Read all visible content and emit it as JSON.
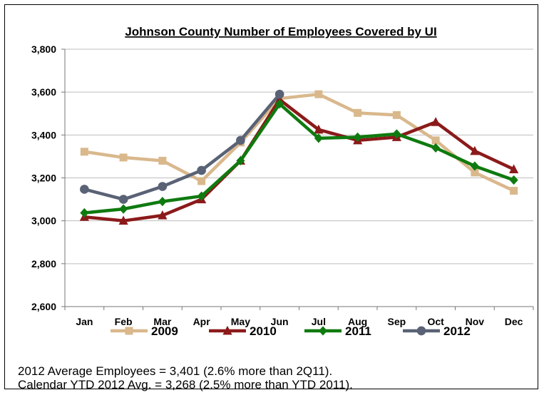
{
  "chart_data": {
    "type": "line",
    "title": "Johnson County Number of Employees Covered by UI",
    "xlabel": "",
    "ylabel": "",
    "categories": [
      "Jan",
      "Feb",
      "Mar",
      "Apr",
      "May",
      "Jun",
      "Jul",
      "Aug",
      "Sep",
      "Oct",
      "Nov",
      "Dec"
    ],
    "ylim": [
      2600,
      3800
    ],
    "yticks": [
      2600,
      2800,
      3000,
      3200,
      3400,
      3600,
      3800
    ],
    "ytick_labels": [
      "2,600",
      "2,800",
      "3,000",
      "3,200",
      "3,400",
      "3,600",
      "3,800"
    ],
    "grid": true,
    "legend_position": "bottom",
    "series": [
      {
        "name": "2009",
        "color": "#D9B88C",
        "marker": "square",
        "values": [
          3322,
          3295,
          3280,
          3185,
          3365,
          3570,
          3590,
          3503,
          3493,
          3375,
          3225,
          3140
        ]
      },
      {
        "name": "2010",
        "color": "#8B1A1A",
        "marker": "triangle",
        "values": [
          3018,
          3000,
          3025,
          3100,
          3280,
          3565,
          3425,
          3375,
          3390,
          3460,
          3325,
          3240
        ]
      },
      {
        "name": "2011",
        "color": "#0F7A0F",
        "marker": "diamond",
        "values": [
          3037,
          3055,
          3090,
          3115,
          3280,
          3545,
          3385,
          3390,
          3405,
          3340,
          3255,
          3190
        ]
      },
      {
        "name": "2012",
        "color": "#5A6275",
        "marker": "circle",
        "values": [
          3147,
          3100,
          3160,
          3235,
          3375,
          3590,
          null,
          null,
          null,
          null,
          null,
          null
        ]
      }
    ]
  },
  "notes": [
    "2012 Average Employees = 3,401 (2.6% more than 2Q11).",
    "Calendar YTD 2012 Avg. = 3,268 (2.5% more than YTD 2011)."
  ]
}
